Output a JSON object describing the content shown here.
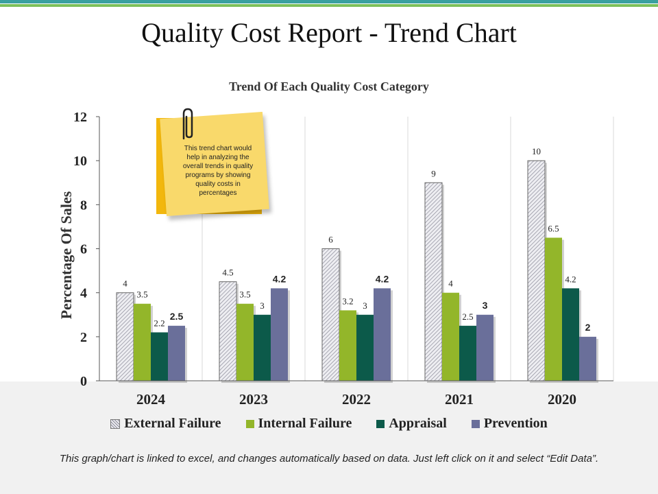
{
  "page": {
    "title": "Quality Cost Report - Trend Chart",
    "footer": "This graph/chart is linked to excel, and changes automatically based on data. Just left click on it and select “Edit Data”."
  },
  "note": {
    "text": "This trend chart would help in analyzing the overall trends in quality programs by showing quality costs in percentages"
  },
  "colors": {
    "external": "#e6e6ec",
    "internal": "#93b62a",
    "appraisal": "#0c5a4a",
    "prevention": "#6a6f9a"
  },
  "chart_data": {
    "type": "bar",
    "title": "Trend Of Each Quality Cost Category",
    "xlabel": "",
    "ylabel": "Percentage Of Sales",
    "ylim": [
      0,
      12
    ],
    "yticks": [
      0,
      2,
      4,
      6,
      8,
      10,
      12
    ],
    "categories": [
      "2024",
      "2023",
      "2022",
      "2021",
      "2020"
    ],
    "legend": "bottom",
    "series": [
      {
        "name": "External Failure",
        "values": [
          4,
          4.5,
          6,
          9,
          10
        ],
        "labels": [
          "4",
          "4.5",
          "6",
          "9",
          "10"
        ]
      },
      {
        "name": "Internal Failure",
        "values": [
          3.5,
          3.5,
          3.2,
          4,
          6.5
        ],
        "labels": [
          "3.5",
          "3.5",
          "3.2",
          "4",
          "6.5"
        ]
      },
      {
        "name": "Appraisal",
        "values": [
          2.2,
          3,
          3,
          2.5,
          4.2
        ],
        "labels": [
          "2.2",
          "3",
          "3",
          "2.5",
          "4.2"
        ]
      },
      {
        "name": "Prevention",
        "values": [
          2.5,
          4.2,
          4.2,
          3,
          2
        ],
        "labels": [
          "2.5",
          "4.2",
          "4.2",
          "3",
          "2"
        ]
      }
    ]
  }
}
